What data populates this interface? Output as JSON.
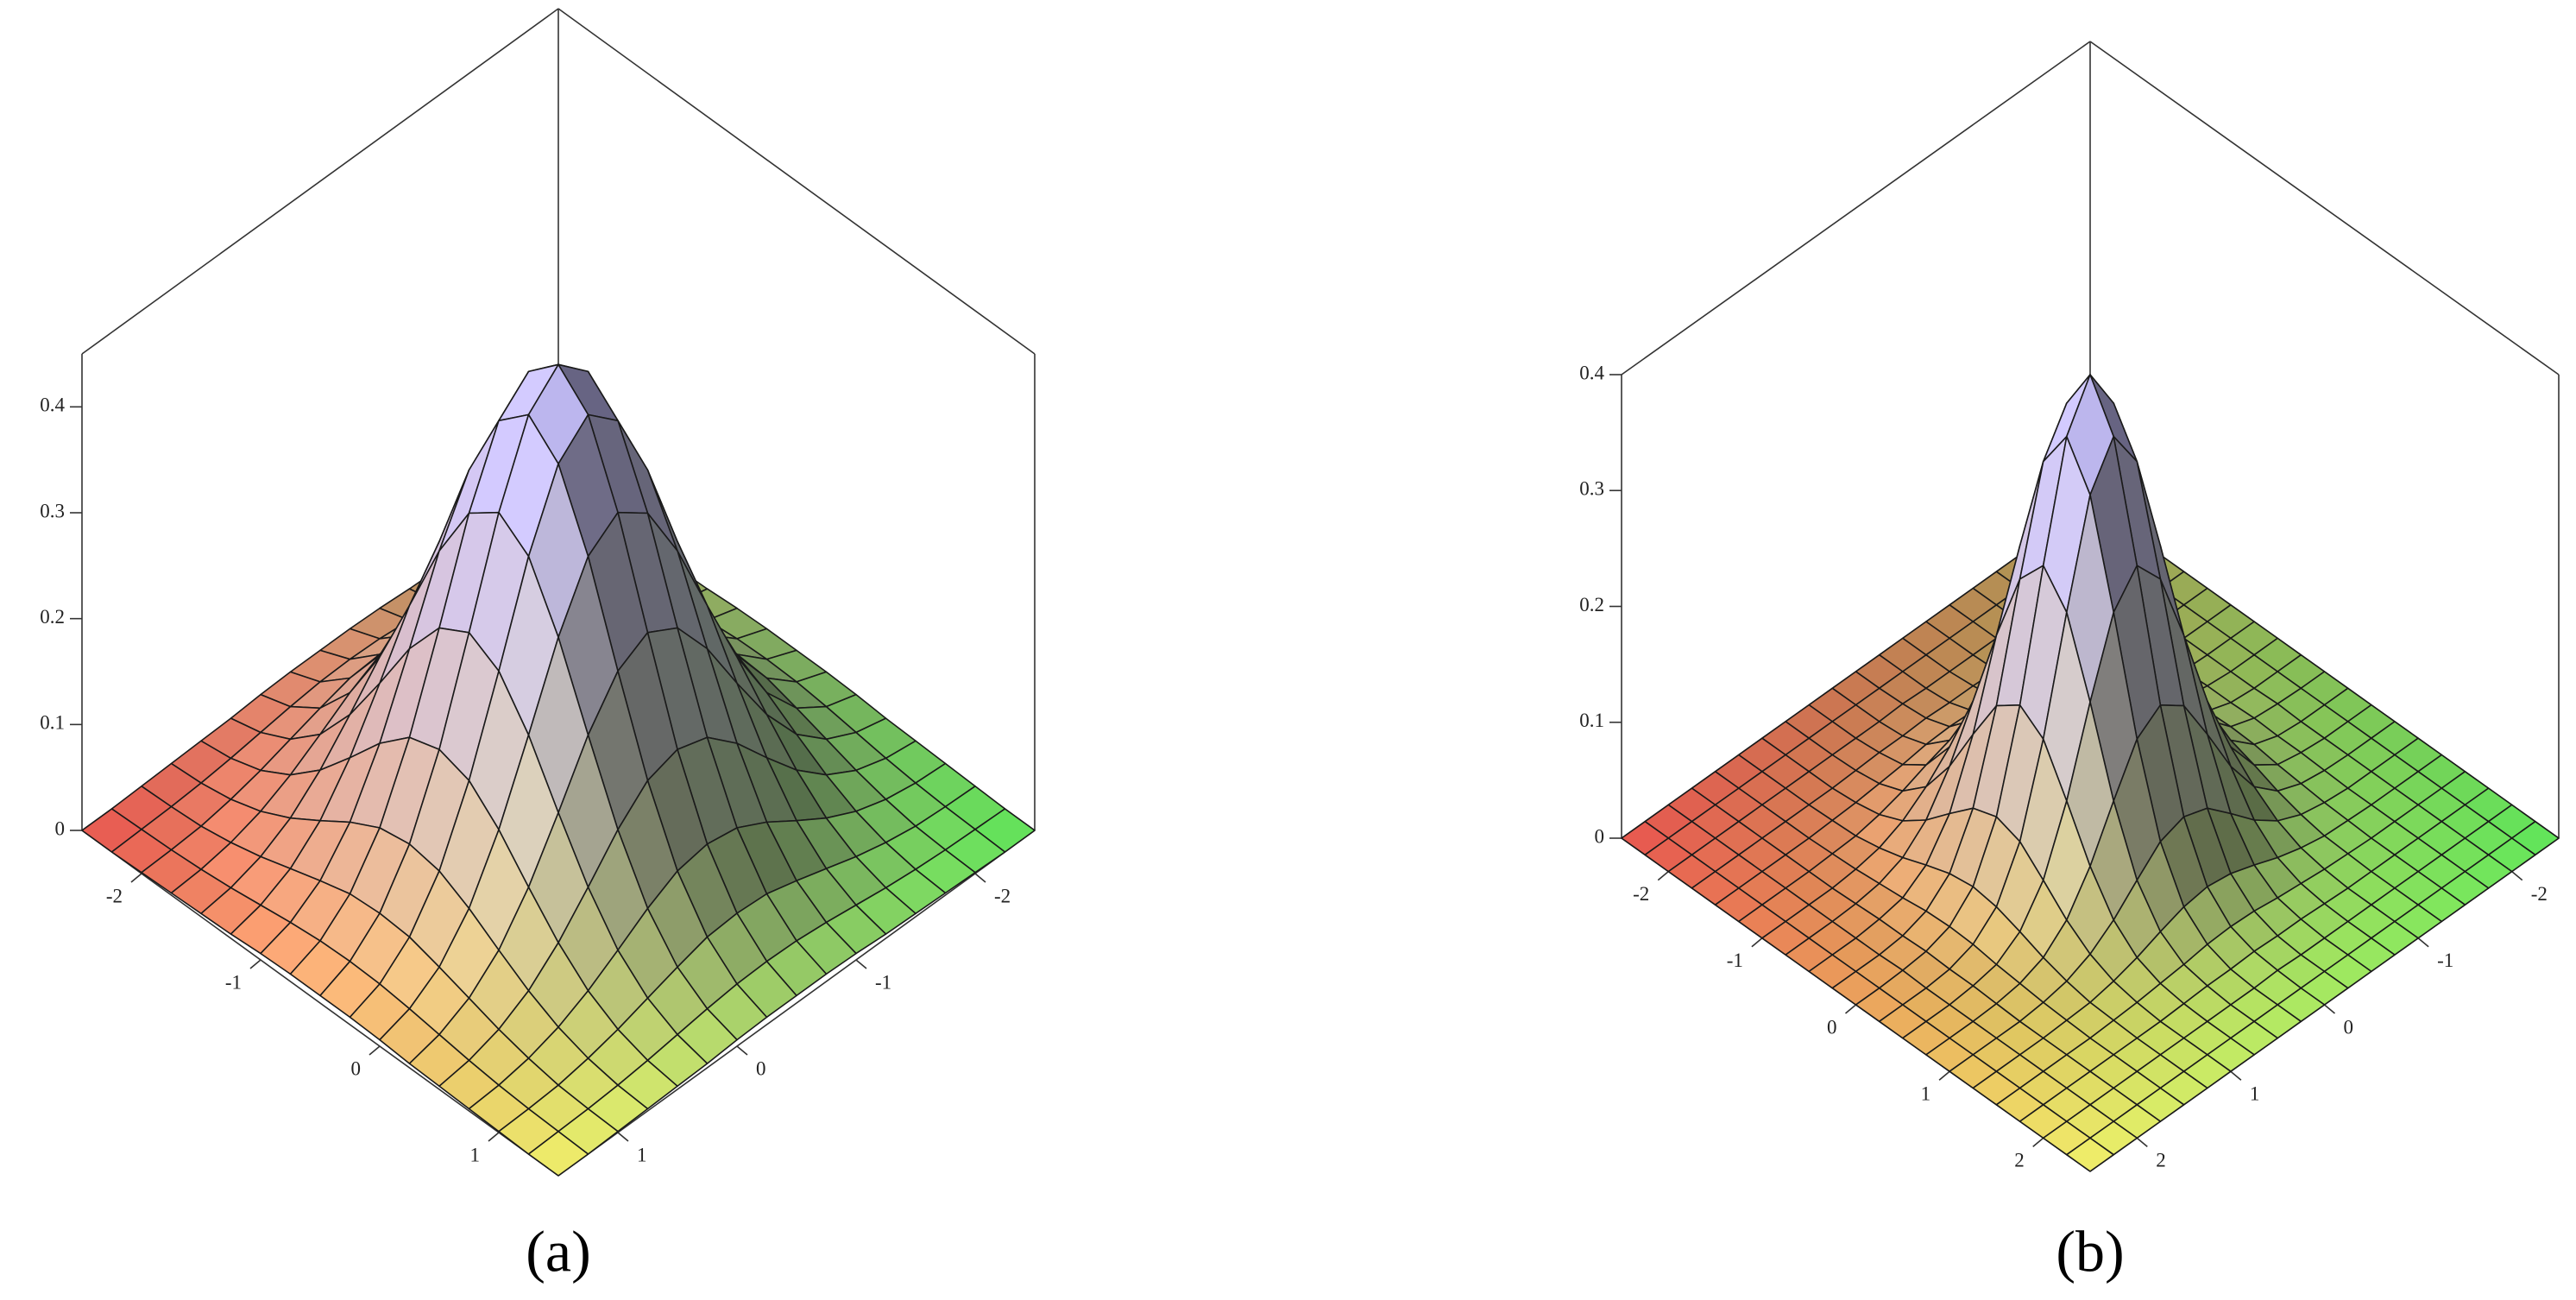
{
  "chart_data": [
    {
      "type": "surface",
      "panel_label": "(a)",
      "x": [
        -2.5,
        -2.25,
        -2,
        -1.75,
        -1.5,
        -1.25,
        -1,
        -0.75,
        -0.5,
        -0.25,
        0,
        0.25,
        0.5,
        0.75,
        1,
        1.25,
        1.5
      ],
      "y": [
        -2.5,
        -2.25,
        -2,
        -1.75,
        -1.5,
        -1.25,
        -1,
        -0.75,
        -0.5,
        -0.25,
        0,
        0.25,
        0.5,
        0.75,
        1,
        1.25,
        1.5
      ],
      "z": [
        [
          0,
          0,
          0.001,
          0.002,
          0.003,
          0.004,
          0.006,
          0.007,
          0.007,
          0.007,
          0.006,
          0.004,
          0.003,
          0.002,
          0.001,
          0,
          0
        ],
        [
          0,
          0.001,
          0.002,
          0.004,
          0.007,
          0.011,
          0.015,
          0.018,
          0.019,
          0.018,
          0.015,
          0.011,
          0.007,
          0.004,
          0.002,
          0.001,
          0
        ],
        [
          0.001,
          0.002,
          0.004,
          0.009,
          0.016,
          0.025,
          0.034,
          0.042,
          0.044,
          0.042,
          0.034,
          0.025,
          0.016,
          0.009,
          0.004,
          0.002,
          0.001
        ],
        [
          0.002,
          0.004,
          0.009,
          0.018,
          0.032,
          0.05,
          0.069,
          0.084,
          0.089,
          0.084,
          0.069,
          0.05,
          0.032,
          0.018,
          0.009,
          0.004,
          0.002
        ],
        [
          0.003,
          0.007,
          0.016,
          0.032,
          0.057,
          0.089,
          0.123,
          0.149,
          0.158,
          0.149,
          0.123,
          0.089,
          0.057,
          0.032,
          0.016,
          0.007,
          0.003
        ],
        [
          0.004,
          0.011,
          0.025,
          0.05,
          0.089,
          0.139,
          0.192,
          0.232,
          0.248,
          0.232,
          0.192,
          0.139,
          0.089,
          0.05,
          0.025,
          0.011,
          0.004
        ],
        [
          0.006,
          0.015,
          0.034,
          0.069,
          0.123,
          0.192,
          0.264,
          0.32,
          0.341,
          0.32,
          0.264,
          0.192,
          0.123,
          0.069,
          0.034,
          0.015,
          0.006
        ],
        [
          0.007,
          0.018,
          0.042,
          0.084,
          0.149,
          0.232,
          0.32,
          0.387,
          0.413,
          0.387,
          0.32,
          0.232,
          0.149,
          0.084,
          0.042,
          0.018,
          0.007
        ],
        [
          0.007,
          0.019,
          0.044,
          0.089,
          0.158,
          0.248,
          0.341,
          0.413,
          0.44,
          0.413,
          0.341,
          0.248,
          0.158,
          0.089,
          0.044,
          0.019,
          0.007
        ],
        [
          0.007,
          0.018,
          0.042,
          0.084,
          0.149,
          0.232,
          0.32,
          0.387,
          0.413,
          0.387,
          0.32,
          0.232,
          0.149,
          0.084,
          0.042,
          0.018,
          0.007
        ],
        [
          0.006,
          0.015,
          0.034,
          0.069,
          0.123,
          0.192,
          0.264,
          0.32,
          0.341,
          0.32,
          0.264,
          0.192,
          0.123,
          0.069,
          0.034,
          0.015,
          0.006
        ],
        [
          0.004,
          0.011,
          0.025,
          0.05,
          0.089,
          0.139,
          0.192,
          0.232,
          0.248,
          0.232,
          0.192,
          0.139,
          0.089,
          0.05,
          0.025,
          0.011,
          0.004
        ],
        [
          0.003,
          0.007,
          0.016,
          0.032,
          0.057,
          0.089,
          0.123,
          0.149,
          0.158,
          0.149,
          0.123,
          0.089,
          0.057,
          0.032,
          0.016,
          0.007,
          0.003
        ],
        [
          0.002,
          0.004,
          0.009,
          0.018,
          0.032,
          0.05,
          0.069,
          0.084,
          0.089,
          0.084,
          0.069,
          0.05,
          0.032,
          0.018,
          0.009,
          0.004,
          0.002
        ],
        [
          0.001,
          0.002,
          0.004,
          0.009,
          0.016,
          0.025,
          0.034,
          0.042,
          0.044,
          0.042,
          0.034,
          0.025,
          0.016,
          0.009,
          0.004,
          0.002,
          0.001
        ],
        [
          0,
          0.001,
          0.002,
          0.004,
          0.007,
          0.011,
          0.015,
          0.018,
          0.019,
          0.018,
          0.015,
          0.011,
          0.007,
          0.004,
          0.002,
          0.001,
          0
        ],
        [
          0,
          0,
          0.001,
          0.002,
          0.003,
          0.004,
          0.006,
          0.007,
          0.007,
          0.007,
          0.006,
          0.004,
          0.003,
          0.002,
          0.001,
          0,
          0
        ]
      ],
      "xlim": [
        -2.5,
        1.5
      ],
      "ylim": [
        -2.5,
        1.5
      ],
      "zlim": [
        0,
        0.45
      ],
      "xticks": [
        -2,
        -1,
        0,
        1
      ],
      "yticks": [
        -2,
        -1,
        0,
        1
      ],
      "zticks": [
        0,
        0.1,
        0.2,
        0.3,
        0.4
      ],
      "corner_colors": [
        "#e8554f",
        "#f2f06a",
        "#5ee65a",
        "#a89c55"
      ],
      "peak_color": "#bcb6f6"
    },
    {
      "type": "surface",
      "panel_label": "(b)",
      "x": [
        -2.5,
        -2.25,
        -2,
        -1.75,
        -1.5,
        -1.25,
        -1,
        -0.75,
        -0.5,
        -0.25,
        0,
        0.25,
        0.5,
        0.75,
        1,
        1.25,
        1.5,
        1.75,
        2,
        2.25,
        2.5
      ],
      "y": [
        -2.5,
        -2.25,
        -2,
        -1.75,
        -1.5,
        -1.25,
        -1,
        -0.75,
        -0.5,
        -0.25,
        0,
        0.25,
        0.5,
        0.75,
        1,
        1.25,
        1.5,
        1.75,
        2,
        2.25,
        2.5
      ],
      "z": [
        [
          0,
          0,
          0,
          0,
          0,
          0,
          0,
          0,
          0,
          0,
          0,
          0,
          0,
          0,
          0,
          0,
          0,
          0,
          0,
          0,
          0
        ],
        [
          0,
          0,
          0,
          0,
          0,
          0,
          0,
          0,
          0,
          0,
          0,
          0,
          0,
          0,
          0,
          0,
          0,
          0,
          0,
          0,
          0
        ],
        [
          0,
          0,
          0,
          0,
          0,
          0,
          0,
          0,
          0,
          0,
          0.001,
          0,
          0,
          0,
          0,
          0,
          0,
          0,
          0,
          0,
          0
        ],
        [
          0,
          0,
          0,
          0,
          0,
          0,
          0,
          0.001,
          0.002,
          0.002,
          0.003,
          0.002,
          0.002,
          0.001,
          0,
          0,
          0,
          0,
          0,
          0,
          0
        ],
        [
          0,
          0,
          0,
          0,
          0,
          0.001,
          0.002,
          0.004,
          0.006,
          0.009,
          0.01,
          0.009,
          0.006,
          0.004,
          0.002,
          0.001,
          0,
          0,
          0,
          0,
          0
        ],
        [
          0,
          0,
          0,
          0,
          0.001,
          0.002,
          0.006,
          0.012,
          0.02,
          0.027,
          0.03,
          0.027,
          0.02,
          0.012,
          0.006,
          0.002,
          0.001,
          0,
          0,
          0,
          0
        ],
        [
          0,
          0,
          0,
          0,
          0.002,
          0.006,
          0.015,
          0.03,
          0.05,
          0.069,
          0.076,
          0.069,
          0.05,
          0.03,
          0.015,
          0.006,
          0.002,
          0,
          0,
          0,
          0
        ],
        [
          0,
          0,
          0,
          0.001,
          0.004,
          0.012,
          0.03,
          0.062,
          0.104,
          0.143,
          0.158,
          0.143,
          0.104,
          0.062,
          0.03,
          0.012,
          0.004,
          0.001,
          0,
          0,
          0
        ],
        [
          0,
          0,
          0,
          0.002,
          0.006,
          0.02,
          0.05,
          0.104,
          0.175,
          0.238,
          0.264,
          0.238,
          0.175,
          0.104,
          0.05,
          0.02,
          0.006,
          0.002,
          0,
          0,
          0
        ],
        [
          0,
          0,
          0,
          0.002,
          0.009,
          0.027,
          0.069,
          0.143,
          0.238,
          0.325,
          0.361,
          0.325,
          0.238,
          0.143,
          0.069,
          0.027,
          0.009,
          0.002,
          0,
          0,
          0
        ],
        [
          0,
          0,
          0.001,
          0.003,
          0.01,
          0.03,
          0.076,
          0.158,
          0.264,
          0.361,
          0.4,
          0.361,
          0.264,
          0.158,
          0.076,
          0.03,
          0.01,
          0.003,
          0.001,
          0,
          0
        ],
        [
          0,
          0,
          0,
          0.002,
          0.009,
          0.027,
          0.069,
          0.143,
          0.238,
          0.325,
          0.361,
          0.325,
          0.238,
          0.143,
          0.069,
          0.027,
          0.009,
          0.002,
          0,
          0,
          0
        ],
        [
          0,
          0,
          0,
          0.002,
          0.006,
          0.02,
          0.05,
          0.104,
          0.175,
          0.238,
          0.264,
          0.238,
          0.175,
          0.104,
          0.05,
          0.02,
          0.006,
          0.002,
          0,
          0,
          0
        ],
        [
          0,
          0,
          0,
          0.001,
          0.004,
          0.012,
          0.03,
          0.062,
          0.104,
          0.143,
          0.158,
          0.143,
          0.104,
          0.062,
          0.03,
          0.012,
          0.004,
          0.001,
          0,
          0,
          0
        ],
        [
          0,
          0,
          0,
          0,
          0.002,
          0.006,
          0.015,
          0.03,
          0.05,
          0.069,
          0.076,
          0.069,
          0.05,
          0.03,
          0.015,
          0.006,
          0.002,
          0,
          0,
          0,
          0
        ],
        [
          0,
          0,
          0,
          0,
          0.001,
          0.002,
          0.006,
          0.012,
          0.02,
          0.027,
          0.03,
          0.027,
          0.02,
          0.012,
          0.006,
          0.002,
          0.001,
          0,
          0,
          0,
          0
        ],
        [
          0,
          0,
          0,
          0,
          0,
          0.001,
          0.002,
          0.004,
          0.006,
          0.009,
          0.01,
          0.009,
          0.006,
          0.004,
          0.002,
          0.001,
          0,
          0,
          0,
          0,
          0
        ],
        [
          0,
          0,
          0,
          0,
          0,
          0,
          0,
          0.001,
          0.002,
          0.002,
          0.003,
          0.002,
          0.002,
          0.001,
          0,
          0,
          0,
          0,
          0,
          0,
          0
        ],
        [
          0,
          0,
          0,
          0,
          0,
          0,
          0,
          0,
          0,
          0,
          0.001,
          0,
          0,
          0,
          0,
          0,
          0,
          0,
          0,
          0,
          0
        ],
        [
          0,
          0,
          0,
          0,
          0,
          0,
          0,
          0,
          0,
          0,
          0,
          0,
          0,
          0,
          0,
          0,
          0,
          0,
          0,
          0,
          0
        ],
        [
          0,
          0,
          0,
          0,
          0,
          0,
          0,
          0,
          0,
          0,
          0,
          0,
          0,
          0,
          0,
          0,
          0,
          0,
          0,
          0,
          0
        ]
      ],
      "xlim": [
        -2.5,
        2.5
      ],
      "ylim": [
        -2.5,
        2.5
      ],
      "zlim": [
        0,
        0.4
      ],
      "xticks": [
        -2,
        -1,
        0,
        1,
        2
      ],
      "yticks": [
        -2,
        -1,
        0,
        1,
        2
      ],
      "zticks": [
        0,
        0.1,
        0.2,
        0.3,
        0.4
      ],
      "corner_colors": [
        "#e8554f",
        "#f2f06a",
        "#5ee65a",
        "#a89c55"
      ],
      "peak_color": "#bcb6f6"
    }
  ]
}
